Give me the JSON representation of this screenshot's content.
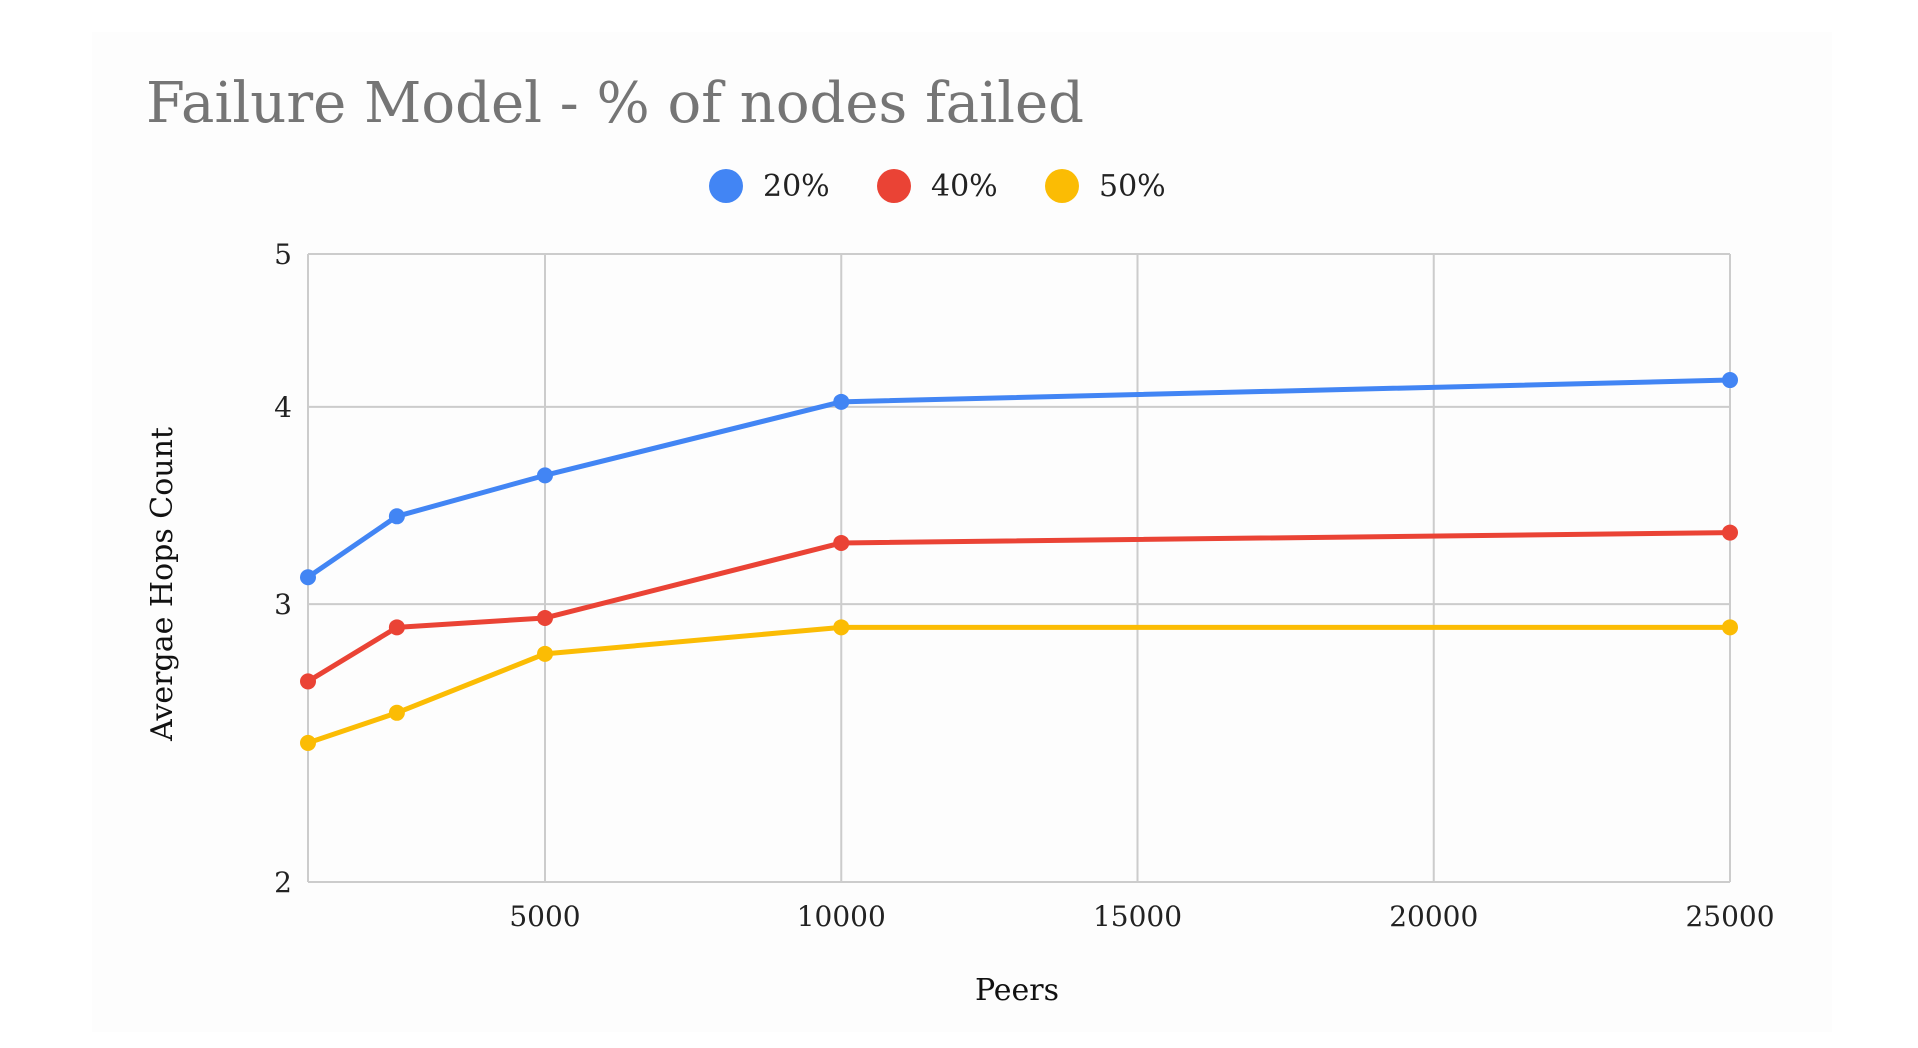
{
  "chart_data": {
    "type": "line",
    "title": "Failure Model - % of nodes failed",
    "xlabel": "Peers",
    "ylabel": "Avergae Hops Count",
    "x": [
      1000,
      2500,
      5000,
      10000,
      25000
    ],
    "xlim": [
      1000,
      25000
    ],
    "xticks": [
      5000,
      10000,
      15000,
      20000,
      25000
    ],
    "xtick_labels": [
      "5000",
      "10000",
      "15000",
      "20000",
      "25000"
    ],
    "ylim": [
      2,
      5
    ],
    "yscale": "log",
    "yticks": [
      2,
      3,
      4,
      5
    ],
    "ytick_labels": [
      "2",
      "3",
      "4",
      "5"
    ],
    "grid": true,
    "legend_position": "top-center",
    "series": [
      {
        "name": "20%",
        "color": "#4285F4",
        "values": [
          3.12,
          3.41,
          3.62,
          4.03,
          4.16
        ]
      },
      {
        "name": "40%",
        "color": "#EA4335",
        "values": [
          2.68,
          2.9,
          2.94,
          3.28,
          3.33
        ]
      },
      {
        "name": "50%",
        "color": "#FBBC04",
        "values": [
          2.45,
          2.56,
          2.79,
          2.9,
          2.9
        ]
      }
    ]
  }
}
